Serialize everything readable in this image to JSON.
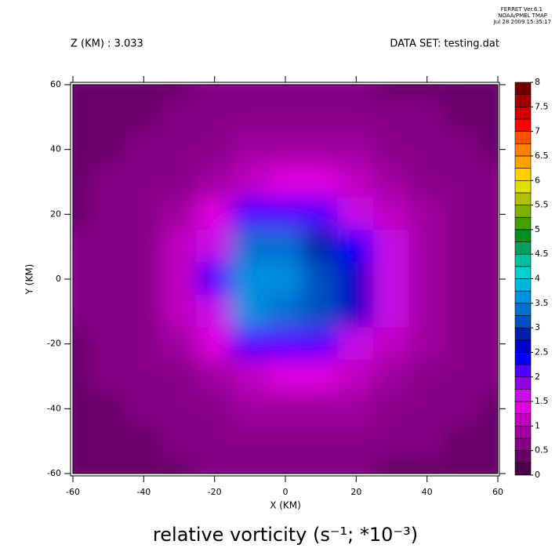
{
  "chart_data": {
    "type": "filled-contour",
    "header": [
      "FERRET  Ver.6.1",
      "NOAA/PMEL TMAP",
      "Jul 28 2009 15:35:17"
    ],
    "subtitle_left": "Z (KM) : 3.033",
    "subtitle_right": "DATA SET: testing.dat",
    "title": "relative vorticity (s⁻¹; *10⁻³)",
    "x_label": "X (KM)",
    "y_label": "Y (KM)",
    "xlim": [
      -60,
      60
    ],
    "ylim": [
      -60,
      60
    ],
    "xticks": [
      -60,
      -40,
      -20,
      0,
      20,
      40,
      60
    ],
    "yticks": [
      -60,
      -40,
      -20,
      0,
      20,
      40,
      60
    ],
    "x": [
      -60,
      -50,
      -40,
      -30,
      -20,
      -10,
      0,
      10,
      20,
      30,
      40,
      50,
      60
    ],
    "y": [
      60,
      50,
      40,
      30,
      20,
      10,
      0,
      -10,
      -20,
      -30,
      -40,
      -50,
      -60
    ],
    "z": [
      [
        0.3,
        0.3,
        0.3,
        0.3,
        0.5,
        0.5,
        0.5,
        0.5,
        0.5,
        0.3,
        0.3,
        0.3,
        0.3
      ],
      [
        0.3,
        0.3,
        0.3,
        0.5,
        0.5,
        0.7,
        0.7,
        0.7,
        0.7,
        0.5,
        0.5,
        0.3,
        0.3
      ],
      [
        0.3,
        0.3,
        0.5,
        0.7,
        0.7,
        0.9,
        0.9,
        0.9,
        0.9,
        0.7,
        0.7,
        0.5,
        0.3
      ],
      [
        0.3,
        0.5,
        0.7,
        0.7,
        0.9,
        1.2,
        1.4,
        1.4,
        1.2,
        0.9,
        0.7,
        0.5,
        0.5
      ],
      [
        0.3,
        0.5,
        0.7,
        0.9,
        1.4,
        2.2,
        2.2,
        2.2,
        1.6,
        1.2,
        0.9,
        0.7,
        0.5
      ],
      [
        0.5,
        0.5,
        0.7,
        1.2,
        1.6,
        3.3,
        3.4,
        2.9,
        2.4,
        1.5,
        0.9,
        0.7,
        0.5
      ],
      [
        0.5,
        0.5,
        0.7,
        1.2,
        2.2,
        3.6,
        3.6,
        3.1,
        2.7,
        1.5,
        0.9,
        0.7,
        0.5
      ],
      [
        0.5,
        0.5,
        0.7,
        1.2,
        1.6,
        3.6,
        3.3,
        3.0,
        2.6,
        1.5,
        0.9,
        0.7,
        0.5
      ],
      [
        0.3,
        0.5,
        0.7,
        0.9,
        1.4,
        2.2,
        2.2,
        2.2,
        1.6,
        1.2,
        0.9,
        0.7,
        0.5
      ],
      [
        0.3,
        0.5,
        0.7,
        0.7,
        0.9,
        1.2,
        1.4,
        1.4,
        1.2,
        0.9,
        0.7,
        0.5,
        0.5
      ],
      [
        0.3,
        0.3,
        0.5,
        0.7,
        0.7,
        0.9,
        0.9,
        0.9,
        0.9,
        0.7,
        0.7,
        0.5,
        0.3
      ],
      [
        0.3,
        0.3,
        0.3,
        0.5,
        0.5,
        0.7,
        0.7,
        0.7,
        0.7,
        0.5,
        0.5,
        0.3,
        0.3
      ],
      [
        0.3,
        0.3,
        0.3,
        0.3,
        0.5,
        0.5,
        0.5,
        0.5,
        0.5,
        0.3,
        0.3,
        0.3,
        0.3
      ]
    ],
    "levels": [
      0,
      0.25,
      0.5,
      0.75,
      1,
      1.25,
      1.5,
      1.75,
      2,
      2.25,
      2.5,
      2.75,
      3,
      3.25,
      3.5,
      3.75,
      4,
      4.25,
      4.5,
      4.75,
      5,
      5.25,
      5.5,
      5.75,
      6,
      6.25,
      6.5,
      6.75,
      7,
      7.25,
      7.5,
      7.75,
      8
    ],
    "colors": [
      "#4a004a",
      "#680068",
      "#860086",
      "#a000a0",
      "#c000c0",
      "#e000e0",
      "#c810e8",
      "#9000e0",
      "#5000ff",
      "#0000ff",
      "#0000c8",
      "#0020a8",
      "#0050c0",
      "#0070d0",
      "#0090e0",
      "#00b4e0",
      "#00d0d0",
      "#00c0a0",
      "#00a060",
      "#009020",
      "#40a000",
      "#80b000",
      "#b0c000",
      "#e0e000",
      "#ffd000",
      "#ffa000",
      "#ff8000",
      "#ff5000",
      "#ff0000",
      "#d00000",
      "#a00000",
      "#700000"
    ],
    "colorbar_ticks": [
      0,
      0.5,
      1,
      1.5,
      2,
      2.5,
      3,
      3.5,
      4,
      4.5,
      5,
      5.5,
      6,
      6.5,
      7,
      7.5,
      8
    ]
  }
}
